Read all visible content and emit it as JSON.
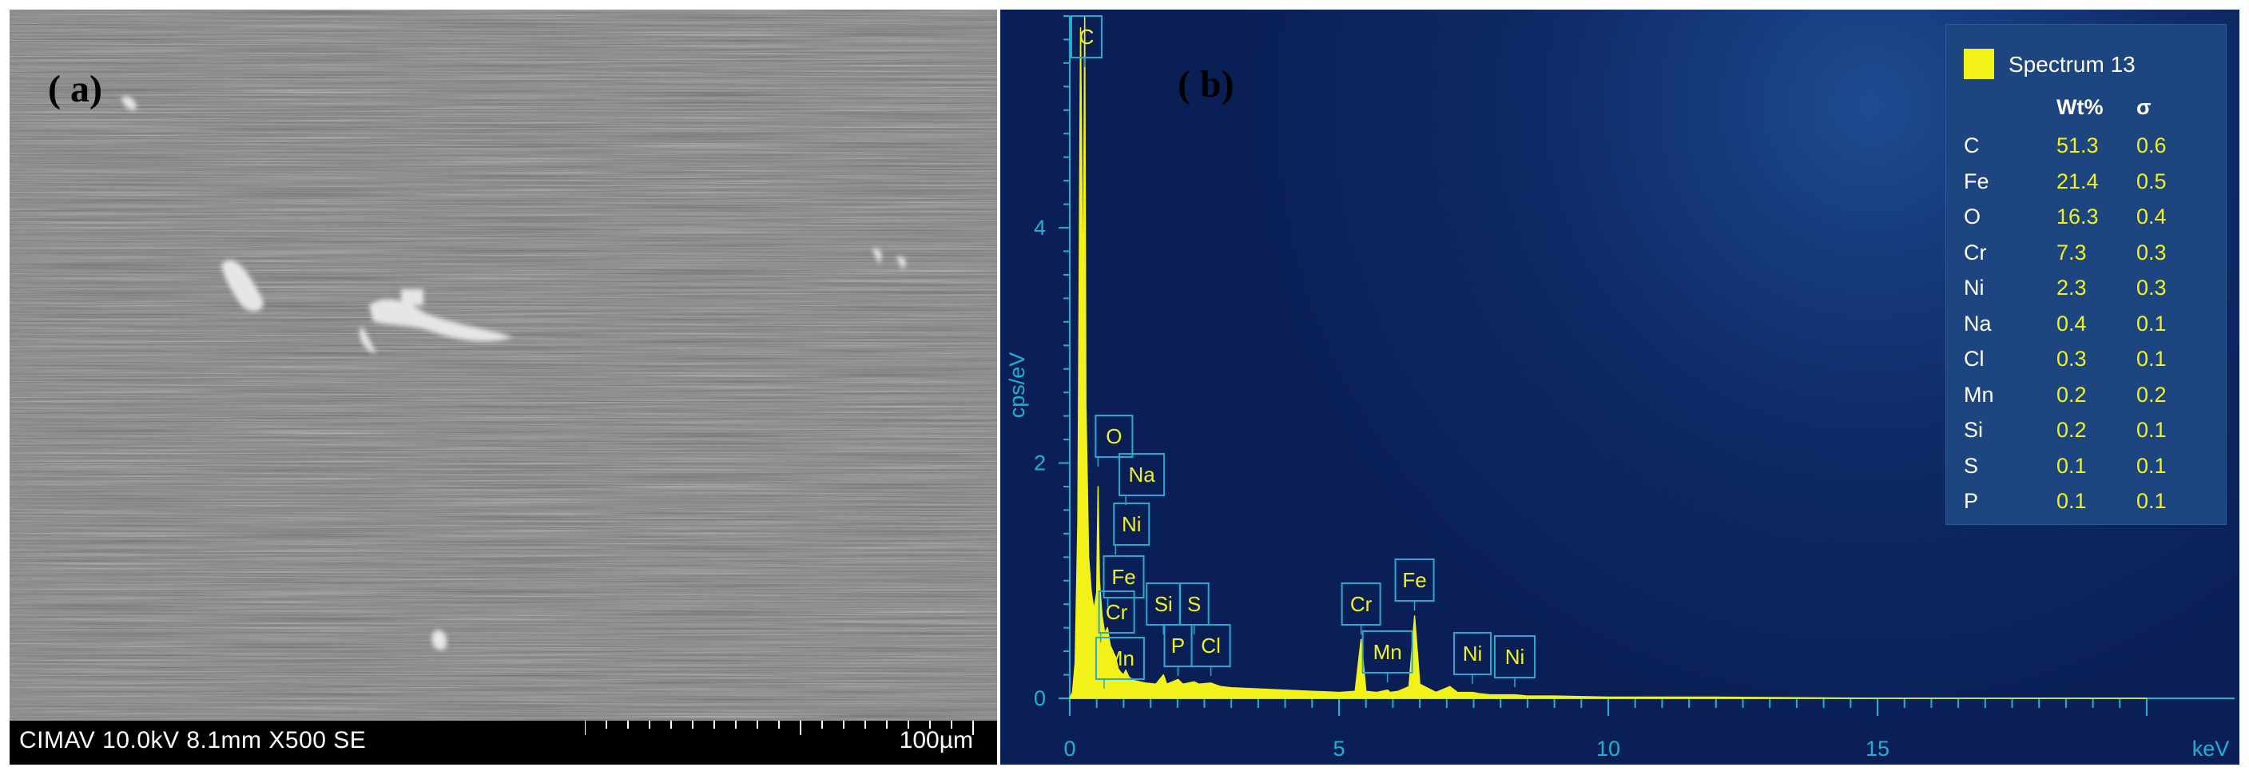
{
  "panel_a": {
    "label": "( a)",
    "sem_info": "CIMAV 10.0kV 8.1mm X500 SE",
    "scale_bar": "100µm"
  },
  "panel_b": {
    "label": "( b)",
    "legend": {
      "title": "Spectrum 13",
      "swatch_color": "#f2f21a",
      "col_wt": "Wt%",
      "col_sigma": "σ",
      "rows": [
        {
          "el": "C",
          "wt": "51.3",
          "sigma": "0.6"
        },
        {
          "el": "Fe",
          "wt": "21.4",
          "sigma": "0.5"
        },
        {
          "el": "O",
          "wt": "16.3",
          "sigma": "0.4"
        },
        {
          "el": "Cr",
          "wt": "7.3",
          "sigma": "0.3"
        },
        {
          "el": "Ni",
          "wt": "2.3",
          "sigma": "0.3"
        },
        {
          "el": "Na",
          "wt": "0.4",
          "sigma": "0.1"
        },
        {
          "el": "Cl",
          "wt": "0.3",
          "sigma": "0.1"
        },
        {
          "el": "Mn",
          "wt": "0.2",
          "sigma": "0.2"
        },
        {
          "el": "Si",
          "wt": "0.2",
          "sigma": "0.1"
        },
        {
          "el": "S",
          "wt": "0.1",
          "sigma": "0.1"
        },
        {
          "el": "P",
          "wt": "0.1",
          "sigma": "0.1"
        }
      ]
    }
  },
  "chart_data": {
    "type": "line",
    "xlabel": "keV",
    "ylabel": "cps/eV",
    "xlim": [
      0,
      20
    ],
    "ylim": [
      0,
      5.8
    ],
    "x_ticks": [
      0,
      5,
      10,
      15
    ],
    "y_ticks": [
      0,
      2,
      4
    ],
    "grid": false,
    "legend_position": "top-right",
    "series_color": "#f2f21a",
    "series": [
      {
        "name": "Spectrum 13",
        "x": [
          0.0,
          0.05,
          0.1,
          0.15,
          0.2,
          0.25,
          0.277,
          0.3,
          0.35,
          0.4,
          0.45,
          0.5,
          0.525,
          0.55,
          0.6,
          0.65,
          0.7,
          0.75,
          0.8,
          0.85,
          0.9,
          0.95,
          1.0,
          1.04,
          1.1,
          1.2,
          1.4,
          1.6,
          1.74,
          1.8,
          2.01,
          2.1,
          2.31,
          2.4,
          2.62,
          2.8,
          3.0,
          3.5,
          4.0,
          4.5,
          5.0,
          5.3,
          5.41,
          5.5,
          5.7,
          5.9,
          5.95,
          6.1,
          6.3,
          6.403,
          6.5,
          6.8,
          7.06,
          7.2,
          7.478,
          7.6,
          7.8,
          8.0,
          8.264,
          8.5,
          9.0,
          10.0,
          12.0,
          15.0,
          20.0
        ],
        "y": [
          0.0,
          0.05,
          0.3,
          1.5,
          5.7,
          3.2,
          5.8,
          2.5,
          1.2,
          0.9,
          0.75,
          0.9,
          1.8,
          1.0,
          0.7,
          0.55,
          0.6,
          0.45,
          0.4,
          0.35,
          0.25,
          0.22,
          0.2,
          0.24,
          0.18,
          0.15,
          0.13,
          0.12,
          0.2,
          0.12,
          0.16,
          0.12,
          0.14,
          0.12,
          0.13,
          0.1,
          0.09,
          0.08,
          0.07,
          0.06,
          0.05,
          0.06,
          0.5,
          0.06,
          0.05,
          0.07,
          0.05,
          0.06,
          0.1,
          0.7,
          0.12,
          0.05,
          0.1,
          0.05,
          0.05,
          0.04,
          0.03,
          0.03,
          0.03,
          0.02,
          0.02,
          0.01,
          0.01,
          0.0,
          0.0
        ]
      }
    ],
    "peak_labels": [
      {
        "text": "C",
        "x": 0.277
      },
      {
        "text": "O",
        "x": 0.525
      },
      {
        "text": "Na",
        "x": 1.04
      },
      {
        "text": "Ni",
        "x": 0.85
      },
      {
        "text": "Fe",
        "x": 0.705
      },
      {
        "text": "Cr",
        "x": 0.573
      },
      {
        "text": "Mn",
        "x": 0.637
      },
      {
        "text": "Si",
        "x": 1.74
      },
      {
        "text": "S",
        "x": 2.31
      },
      {
        "text": "P",
        "x": 2.01
      },
      {
        "text": "Cl",
        "x": 2.62
      },
      {
        "text": "Cr",
        "x": 5.41
      },
      {
        "text": "Mn",
        "x": 5.9
      },
      {
        "text": "Fe",
        "x": 6.403
      },
      {
        "text": "Ni",
        "x": 7.478
      },
      {
        "text": "Ni",
        "x": 8.264
      }
    ]
  }
}
